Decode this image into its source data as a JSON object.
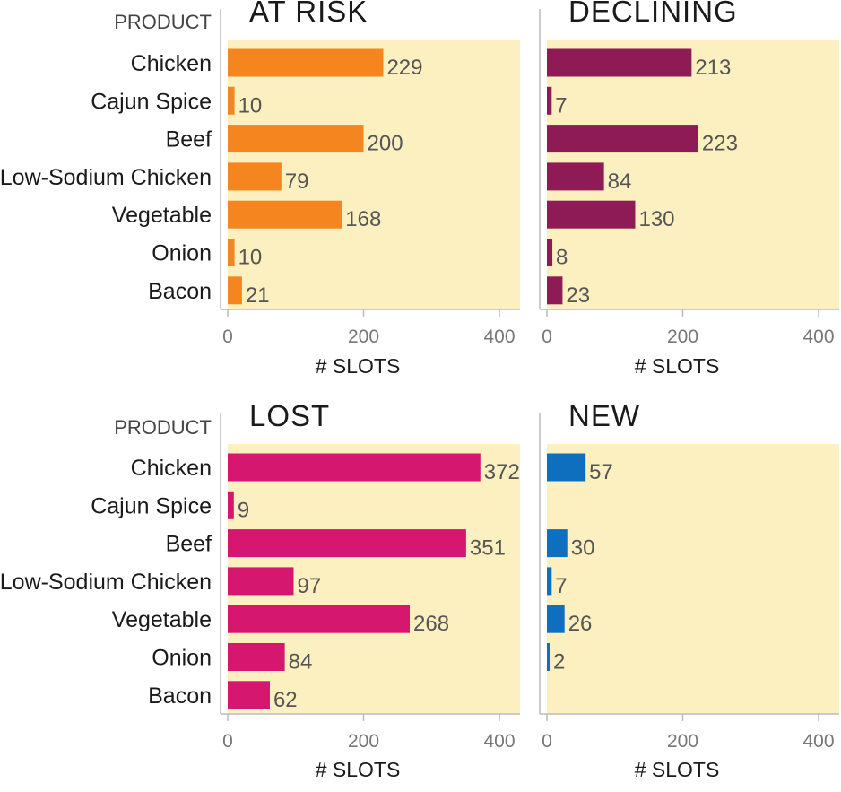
{
  "chart_data": {
    "type": "bar",
    "orientation": "horizontal",
    "layout": "small-multiples 2x2",
    "y_axis_title": "PRODUCT",
    "x_axis_title": "# SLOTS",
    "xlim": [
      0,
      430
    ],
    "xticks": [
      0,
      200,
      400
    ],
    "panel_background": "#fdf0c0",
    "categories": [
      "Chicken",
      "Cajun Spice",
      "Beef",
      "Low-Sodium Chicken",
      "Vegetable",
      "Onion",
      "Bacon"
    ],
    "panels": [
      {
        "title": "AT RISK",
        "color": "#f5861f",
        "values": [
          229,
          10,
          200,
          79,
          168,
          10,
          21
        ]
      },
      {
        "title": "DECLINING",
        "color": "#8e1a56",
        "values": [
          213,
          7,
          223,
          84,
          130,
          8,
          23
        ]
      },
      {
        "title": "LOST",
        "color": "#d5176f",
        "values": [
          372,
          9,
          351,
          97,
          268,
          84,
          62
        ]
      },
      {
        "title": "NEW",
        "color": "#0e6fbf",
        "values": [
          57,
          null,
          30,
          7,
          26,
          2,
          null
        ]
      }
    ]
  }
}
